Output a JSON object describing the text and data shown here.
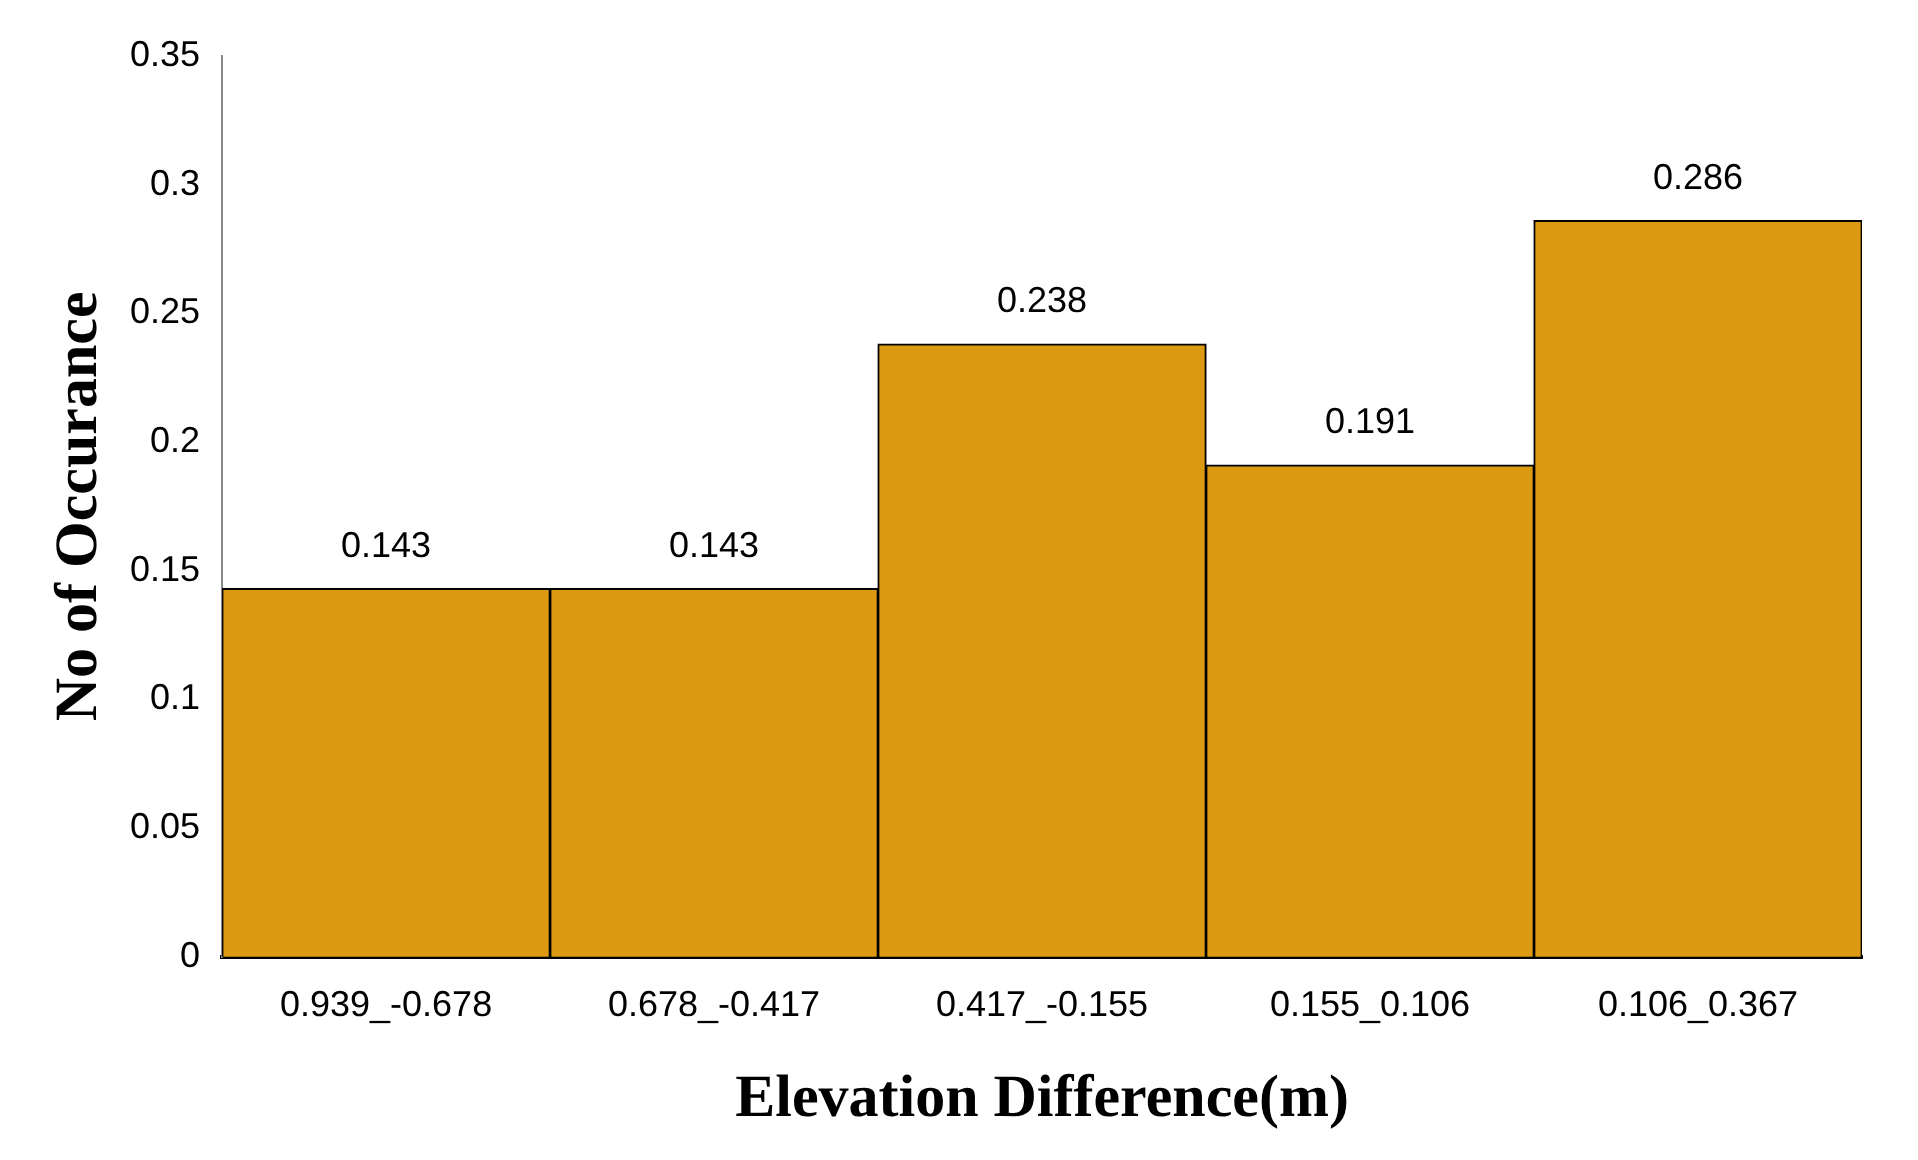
{
  "chart_data": {
    "type": "bar",
    "xlabel": "Elevation Difference(m)",
    "ylabel": "No of Occurance",
    "categories": [
      "0.939_-0.678",
      "0.678_-0.417",
      "0.417_-0.155",
      "0.155_0.106",
      "0.106_0.367"
    ],
    "values": [
      0.143,
      0.143,
      0.238,
      0.191,
      0.286
    ],
    "color": "#dc9a12",
    "ylim": [
      0,
      0.35
    ],
    "yticks": [
      0,
      0.05,
      0.1,
      0.15,
      0.2,
      0.25,
      0.3,
      0.35
    ],
    "grid": false,
    "data_labels": true,
    "legend": false
  }
}
